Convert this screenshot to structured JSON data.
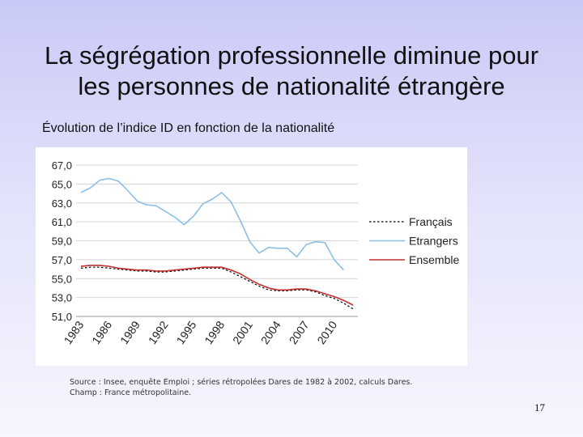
{
  "slide": {
    "title_line1": "La ségrégation professionnelle diminue pour",
    "title_line2": "les personnes de nationalité étrangère",
    "subtitle": "Évolution de l’indice ID en fonction de la nationalité",
    "source_label": "Source",
    "source_text": " : Insee, enquête Emploi ; séries rétropolées Dares de 1982 à 2002, calculs Dares.",
    "champ_label": "Champ",
    "champ_text": " : France métropolitaine.",
    "page_number": "17"
  },
  "chart_data": {
    "type": "line",
    "x": [
      1983,
      1984,
      1985,
      1986,
      1987,
      1988,
      1989,
      1990,
      1991,
      1992,
      1993,
      1994,
      1995,
      1996,
      1997,
      1998,
      1999,
      2000,
      2001,
      2002,
      2003,
      2004,
      2005,
      2006,
      2007,
      2008,
      2009,
      2010,
      2011,
      2012
    ],
    "ylim": [
      51.0,
      67.0
    ],
    "yticks": [
      "51,0",
      "53,0",
      "55,0",
      "57,0",
      "59,0",
      "61,0",
      "63,0",
      "65,0",
      "67,0"
    ],
    "xticks": [
      "1983",
      "1986",
      "1989",
      "1992",
      "1995",
      "1998",
      "2001",
      "2004",
      "2007",
      "2010"
    ],
    "series": [
      {
        "name": "Français",
        "color": "#000000",
        "style": "dotted",
        "values": [
          56.1,
          56.2,
          56.2,
          56.1,
          56.0,
          55.9,
          55.8,
          55.8,
          55.7,
          55.7,
          55.8,
          55.9,
          56.0,
          56.1,
          56.1,
          56.1,
          55.7,
          55.2,
          54.7,
          54.2,
          53.8,
          53.7,
          53.7,
          53.8,
          53.8,
          53.6,
          53.2,
          52.9,
          52.4,
          51.8
        ]
      },
      {
        "name": "Etrangers",
        "color": "#8cbfe4",
        "style": "solid",
        "values": [
          64.1,
          64.6,
          65.4,
          65.6,
          65.3,
          64.3,
          63.2,
          62.8,
          62.7,
          62.1,
          61.5,
          60.7,
          61.6,
          62.9,
          63.4,
          64.1,
          63.1,
          61.1,
          58.9,
          57.7,
          58.3,
          58.2,
          58.2,
          57.3,
          58.6,
          58.9,
          58.8,
          57.0,
          55.9,
          null
        ]
      },
      {
        "name": "Ensemble",
        "color": "#c0312f",
        "style": "solid",
        "values": [
          56.3,
          56.4,
          56.4,
          56.3,
          56.1,
          56.0,
          55.9,
          55.9,
          55.8,
          55.8,
          55.9,
          56.0,
          56.1,
          56.2,
          56.2,
          56.2,
          55.9,
          55.5,
          54.9,
          54.4,
          54.0,
          53.8,
          53.8,
          53.9,
          53.9,
          53.7,
          53.4,
          53.1,
          52.7,
          52.2
        ]
      }
    ],
    "grid": "horizontal",
    "legend_position": "right"
  }
}
